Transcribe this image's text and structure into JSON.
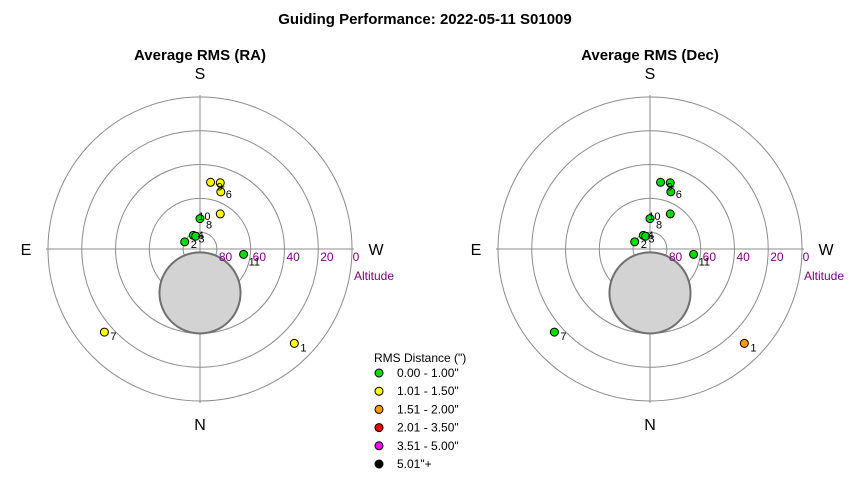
{
  "title": "Guiding Performance: 2022-05-11 S01009",
  "colors": {
    "ring": "#8c8c8c",
    "axis": "#8c8c8c",
    "altitude_text": "#800080",
    "obstruction_fill": "#d3d3d3",
    "obstruction_stroke": "#707070"
  },
  "legend": {
    "title": "RMS Distance (\")",
    "items": [
      {
        "label": "0.00 - 1.00\"",
        "color": "#00dd00"
      },
      {
        "label": "1.01 - 1.50\"",
        "color": "#ffff00"
      },
      {
        "label": "1.51 - 2.00\"",
        "color": "#ff9900"
      },
      {
        "label": "2.01 - 3.50\"",
        "color": "#ee0000"
      },
      {
        "label": "3.51 - 5.00\"",
        "color": "#ff00ff"
      },
      {
        "label": "5.01\"+",
        "color": "#000000"
      }
    ]
  },
  "chart_data": [
    {
      "type": "scatter",
      "subtype": "polar-altitude-azimuth",
      "title": "Average RMS (RA)",
      "compass": {
        "top": "S",
        "bottom": "N",
        "left": "E",
        "right": "W"
      },
      "altitude_ticks": [
        "80",
        "60",
        "40",
        "20",
        "0"
      ],
      "altitude_label": "Altitude",
      "rings_altitude": [
        80,
        60,
        40,
        20,
        0
      ],
      "points": [
        {
          "label": "1",
          "altitude": 11,
          "azimuth": 315,
          "rms_range": "1.01 - 1.50\""
        },
        {
          "label": "2",
          "altitude": 80,
          "azimuth": 115,
          "rms_range": "0.00 - 1.00\""
        },
        {
          "label": "3",
          "altitude": 81,
          "azimuth": 154,
          "rms_range": "0.00 - 1.00\""
        },
        {
          "label": "4",
          "altitude": 82,
          "azimuth": 161,
          "rms_range": "0.00 - 1.00\""
        },
        {
          "label": "5",
          "altitude": 49,
          "azimuth": 197,
          "rms_range": "1.01 - 1.50\""
        },
        {
          "label": "6",
          "altitude": 54,
          "azimuth": 200,
          "rms_range": "1.01 - 1.50\""
        },
        {
          "label": "7",
          "altitude": 15,
          "azimuth": 49,
          "rms_range": "1.01 - 1.50\""
        },
        {
          "label": "8",
          "altitude": 72,
          "azimuth": 180,
          "rms_range": "0.00 - 1.00\""
        },
        {
          "label": "9",
          "altitude": 50,
          "azimuth": 189,
          "rms_range": "1.01 - 1.50\""
        },
        {
          "label": "10",
          "altitude": 66,
          "azimuth": 210,
          "rms_range": "1.01 - 1.50\""
        },
        {
          "label": "11",
          "altitude": 64,
          "azimuth": 277,
          "rms_range": "0.00 - 1.00\""
        }
      ],
      "obstruction": {
        "center_altitude": 64,
        "center_azimuth": 0,
        "radius_degrees": 24
      }
    },
    {
      "type": "scatter",
      "subtype": "polar-altitude-azimuth",
      "title": "Average RMS (Dec)",
      "compass": {
        "top": "S",
        "bottom": "N",
        "left": "E",
        "right": "W"
      },
      "altitude_ticks": [
        "80",
        "60",
        "40",
        "20",
        "0"
      ],
      "altitude_label": "Altitude",
      "rings_altitude": [
        80,
        60,
        40,
        20,
        0
      ],
      "points": [
        {
          "label": "1",
          "altitude": 11,
          "azimuth": 315,
          "rms_range": "1.51 - 2.00\""
        },
        {
          "label": "2",
          "altitude": 80,
          "azimuth": 115,
          "rms_range": "0.00 - 1.00\""
        },
        {
          "label": "3",
          "altitude": 81,
          "azimuth": 154,
          "rms_range": "0.00 - 1.00\""
        },
        {
          "label": "4",
          "altitude": 82,
          "azimuth": 161,
          "rms_range": "0.00 - 1.00\""
        },
        {
          "label": "5",
          "altitude": 49,
          "azimuth": 197,
          "rms_range": "0.00 - 1.00\""
        },
        {
          "label": "6",
          "altitude": 54,
          "azimuth": 200,
          "rms_range": "0.00 - 1.00\""
        },
        {
          "label": "7",
          "altitude": 15,
          "azimuth": 49,
          "rms_range": "0.00 - 1.00\""
        },
        {
          "label": "8",
          "altitude": 72,
          "azimuth": 180,
          "rms_range": "0.00 - 1.00\""
        },
        {
          "label": "9",
          "altitude": 50,
          "azimuth": 189,
          "rms_range": "0.00 - 1.00\""
        },
        {
          "label": "10",
          "altitude": 66,
          "azimuth": 210,
          "rms_range": "0.00 - 1.00\""
        },
        {
          "label": "11",
          "altitude": 64,
          "azimuth": 277,
          "rms_range": "0.00 - 1.00\""
        }
      ],
      "obstruction": {
        "center_altitude": 64,
        "center_azimuth": 0,
        "radius_degrees": 24
      }
    }
  ]
}
